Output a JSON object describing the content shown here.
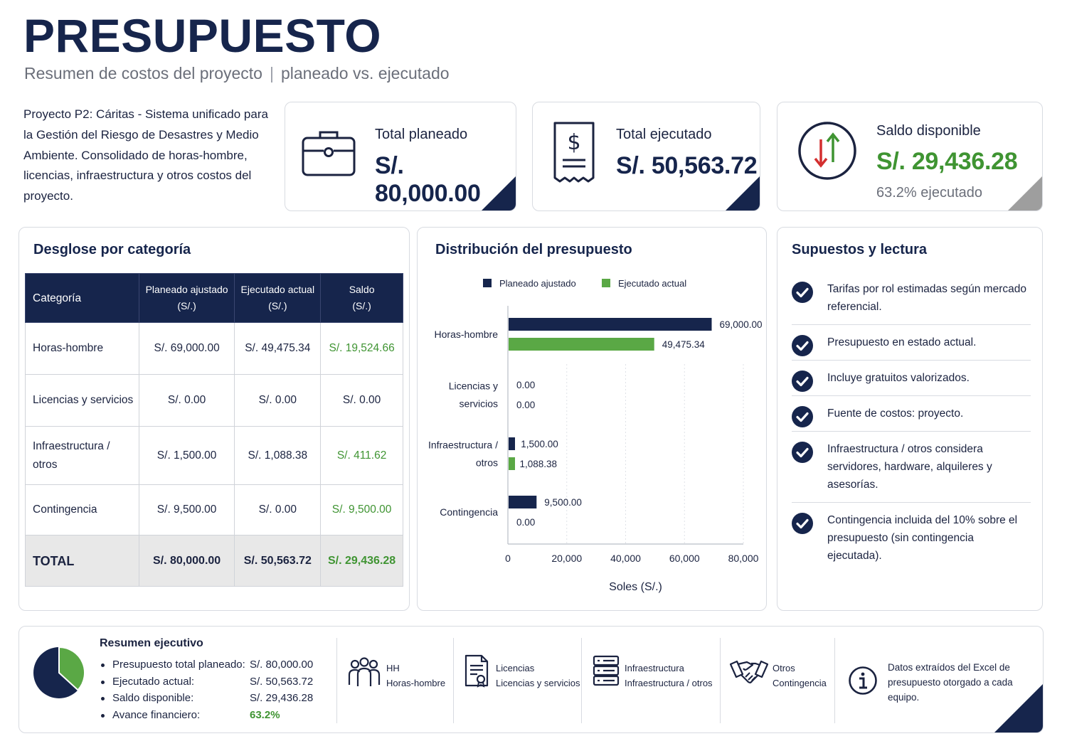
{
  "header": {
    "title": "PRESUPUESTO",
    "subtitle_left": "Resumen de costos del proyecto",
    "subtitle_sep": "|",
    "subtitle_right": "planeado vs. ejecutado"
  },
  "intro": "Proyecto P2: Cáritas - Sistema unificado para la Gestión del Riesgo de Desastres y Medio Ambiente. Consolidado de horas-hombre, licencias, infraestructura y otros costos del proyecto.",
  "kpis": {
    "planned": {
      "label": "Total planeado",
      "value": "S/. 80,000.00",
      "icon": "briefcase-icon"
    },
    "executed": {
      "label": "Total ejecutado",
      "value": "S/. 50,563.72",
      "icon": "receipt-icon"
    },
    "balance": {
      "label": "Saldo disponible",
      "value": "S/. 29,436.28",
      "sub": "63.2% ejecutado",
      "icon": "up-down-arrows-icon"
    }
  },
  "breakdown": {
    "title": "Desglose por categoría",
    "headers": {
      "category": "Categoría",
      "planned_1": "Planeado ajustado",
      "planned_2": "(S/.)",
      "executed_1": "Ejecutado actual",
      "executed_2": "(S/.)",
      "balance_1": "Saldo",
      "balance_2": "(S/.)"
    },
    "rows": [
      {
        "category_1": "Horas-hombre",
        "category_2": "",
        "planned": "S/. 69,000.00",
        "executed": "S/. 49,475.34",
        "balance": "S/. 19,524.66"
      },
      {
        "category_1": "Licencias y servicios",
        "category_2": "",
        "planned": "S/. 0.00",
        "executed": "S/. 0.00",
        "balance": "S/. 0.00"
      },
      {
        "category_1": "Infraestructura /",
        "category_2": "otros",
        "planned": "S/. 1,500.00",
        "executed": "S/. 1,088.38",
        "balance": "S/. 411.62"
      },
      {
        "category_1": "Contingencia",
        "category_2": "",
        "planned": "S/. 9,500.00",
        "executed": "S/. 0.00",
        "balance": "S/. 9,500.00"
      }
    ],
    "total": {
      "label": "TOTAL",
      "planned": "S/. 80,000.00",
      "executed": "S/. 50,563.72",
      "balance": "S/. 29,436.28"
    }
  },
  "chart_data": {
    "type": "bar",
    "orientation": "horizontal",
    "title": "Distribución del presupuesto",
    "xlabel": "Soles (S/.)",
    "ylabel": "",
    "categories": [
      [
        "Horas-hombre"
      ],
      [
        "Licencias y",
        "servicios"
      ],
      [
        "Infraestructura /",
        "otros"
      ],
      [
        "Contingencia"
      ]
    ],
    "series": [
      {
        "name": "Planeado ajustado",
        "color": "#16254c",
        "values": [
          69000,
          0,
          1500,
          9500
        ],
        "labels": [
          "69,000.00",
          "0.00",
          "1,500.00",
          "9,500.00"
        ]
      },
      {
        "name": "Ejecutado actual",
        "color": "#5aa845",
        "values": [
          49475.34,
          0,
          1088.38,
          0
        ],
        "labels": [
          "49,475.34",
          "0.00",
          "1,088.38",
          "0.00"
        ]
      }
    ],
    "xlim": [
      0,
      80000
    ],
    "xticks": [
      0,
      20000,
      40000,
      60000,
      80000
    ],
    "xtick_labels": [
      "0",
      "20,000",
      "40,000",
      "60,000",
      "80,000"
    ],
    "grid": true,
    "legend": "top"
  },
  "assumptions": {
    "title": "Supuestos y lectura",
    "items": [
      "Tarifas por rol estimadas según mercado referencial.",
      "Presupuesto en estado actual.",
      "Incluye gratuitos valorizados.",
      "Fuente de costos: proyecto.",
      "Infraestructura / otros considera servidores, hardware, alquileres y asesorías.",
      "Contingencia incluida del 10% sobre el presupuesto (sin contingencia ejecutada)."
    ]
  },
  "executive": {
    "title": "Resumen ejecutivo",
    "pie_executed_fraction": 0.632,
    "rows": [
      {
        "label": "Presupuesto total planeado:",
        "value": "S/. 80,000.00"
      },
      {
        "label": "Ejecutado actual:",
        "value": "S/. 50,563.72"
      },
      {
        "label": "Saldo disponible:",
        "value": "S/. 29,436.28"
      },
      {
        "label": "Avance financiero:",
        "value": "63.2%"
      }
    ]
  },
  "legend_items": [
    {
      "icon": "people-icon",
      "line1": "HH",
      "line2": "Horas-hombre"
    },
    {
      "icon": "license-document-icon",
      "line1": "Licencias",
      "line2": "Licencias y servicios"
    },
    {
      "icon": "server-icon",
      "line1": "Infraestructura",
      "line2": "Infraestructura / otros"
    },
    {
      "icon": "handshake-icon",
      "line1": "Otros",
      "line2": "Contingencia"
    }
  ],
  "note": {
    "icon": "info-icon",
    "text": "Datos extraídos del Excel de presupuesto otorgado a cada equipo."
  },
  "colors": {
    "navy": "#16254c",
    "green": "#3f9432",
    "bar_green": "#5aa845",
    "red": "#d32f2f"
  }
}
